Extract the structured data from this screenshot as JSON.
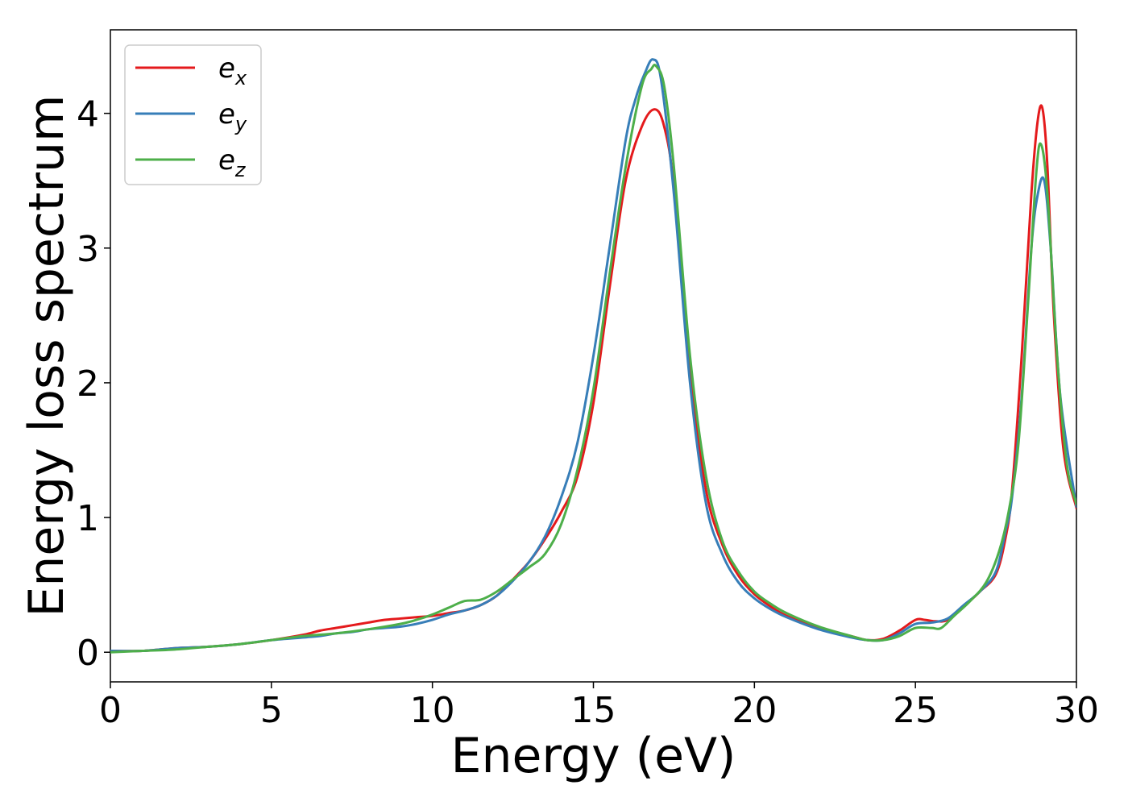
{
  "chart_data": {
    "type": "line",
    "title": "",
    "xlabel": "Energy (eV)",
    "ylabel": "Energy loss spectrum",
    "xlim": [
      0,
      30
    ],
    "ylim": [
      -0.22,
      4.62
    ],
    "xticks": [
      0,
      5,
      10,
      15,
      20,
      25,
      30
    ],
    "xtick_labels": [
      "0",
      "5",
      "10",
      "15",
      "20",
      "25",
      "30"
    ],
    "yticks": [
      0,
      1,
      2,
      3,
      4
    ],
    "ytick_labels": [
      "0",
      "1",
      "2",
      "3",
      "4"
    ],
    "grid": false,
    "legend": "top-left",
    "series": [
      {
        "name": "e",
        "subscript": "x",
        "color": "#e41a1c",
        "x": [
          0,
          1,
          2,
          3,
          4,
          5,
          6,
          6.5,
          7,
          7.5,
          8,
          8.5,
          9,
          9.5,
          10,
          10.5,
          11,
          11.5,
          12,
          12.5,
          13,
          13.5,
          14,
          14.5,
          15,
          15.5,
          16,
          16.5,
          16.9,
          17.2,
          17.5,
          18,
          18.5,
          19,
          19.5,
          20,
          20.5,
          21,
          22,
          23,
          23.5,
          24,
          24.5,
          25,
          25.3,
          25.6,
          26,
          26.5,
          27,
          27.5,
          27.8,
          28,
          28.3,
          28.6,
          28.8,
          28.95,
          29.1,
          29.3,
          29.6,
          30
        ],
        "y": [
          0.01,
          0.01,
          0.03,
          0.04,
          0.06,
          0.09,
          0.13,
          0.16,
          0.18,
          0.2,
          0.22,
          0.24,
          0.25,
          0.26,
          0.27,
          0.29,
          0.31,
          0.35,
          0.42,
          0.54,
          0.67,
          0.84,
          1.04,
          1.3,
          1.85,
          2.7,
          3.5,
          3.9,
          4.03,
          3.9,
          3.45,
          2.1,
          1.2,
          0.8,
          0.57,
          0.43,
          0.34,
          0.27,
          0.18,
          0.12,
          0.09,
          0.1,
          0.16,
          0.24,
          0.24,
          0.23,
          0.24,
          0.34,
          0.45,
          0.58,
          0.85,
          1.2,
          2.2,
          3.4,
          3.95,
          4.03,
          3.6,
          2.5,
          1.5,
          1.07
        ]
      },
      {
        "name": "e",
        "subscript": "y",
        "color": "#377eb8",
        "x": [
          0,
          1,
          2,
          3,
          4,
          5,
          6,
          6.5,
          7,
          7.5,
          8,
          8.5,
          9,
          9.5,
          10,
          10.5,
          11,
          11.5,
          12,
          12.5,
          13,
          13.5,
          14,
          14.5,
          15,
          15.5,
          16,
          16.3,
          16.6,
          16.85,
          17.1,
          17.5,
          18,
          18.5,
          19,
          19.5,
          20,
          20.5,
          21,
          22,
          23,
          23.5,
          24,
          24.5,
          25,
          25.5,
          26,
          26.5,
          27,
          27.5,
          27.8,
          28,
          28.3,
          28.6,
          28.8,
          29,
          29.2,
          29.5,
          30
        ],
        "y": [
          0.01,
          0.01,
          0.03,
          0.04,
          0.06,
          0.09,
          0.11,
          0.12,
          0.14,
          0.15,
          0.17,
          0.18,
          0.19,
          0.21,
          0.24,
          0.28,
          0.31,
          0.35,
          0.42,
          0.53,
          0.67,
          0.86,
          1.15,
          1.55,
          2.2,
          3.0,
          3.8,
          4.1,
          4.3,
          4.4,
          4.25,
          3.4,
          2.0,
          1.1,
          0.73,
          0.52,
          0.4,
          0.32,
          0.26,
          0.17,
          0.11,
          0.09,
          0.09,
          0.14,
          0.21,
          0.22,
          0.25,
          0.35,
          0.45,
          0.6,
          0.9,
          1.15,
          1.9,
          3.0,
          3.4,
          3.5,
          3.0,
          1.9,
          1.08
        ]
      },
      {
        "name": "e",
        "subscript": "z",
        "color": "#4daf4a",
        "x": [
          0,
          1,
          2,
          3,
          4,
          5,
          6,
          7,
          8,
          9,
          9.5,
          10,
          10.5,
          11,
          11.5,
          12,
          12.5,
          13,
          13.5,
          14,
          14.5,
          15,
          15.5,
          16,
          16.5,
          16.8,
          16.95,
          17.2,
          17.5,
          18,
          18.5,
          19,
          19.5,
          20,
          20.5,
          21,
          22,
          23,
          23.5,
          24,
          24.5,
          25,
          25.5,
          25.8,
          26.2,
          26.7,
          27.2,
          27.6,
          27.9,
          28.2,
          28.5,
          28.75,
          28.9,
          29.1,
          29.4,
          29.7,
          30
        ],
        "y": [
          0.0,
          0.01,
          0.02,
          0.04,
          0.06,
          0.09,
          0.12,
          0.14,
          0.17,
          0.21,
          0.24,
          0.28,
          0.33,
          0.38,
          0.39,
          0.45,
          0.54,
          0.63,
          0.73,
          0.95,
          1.35,
          1.95,
          2.8,
          3.6,
          4.2,
          4.33,
          4.35,
          4.2,
          3.6,
          2.2,
          1.3,
          0.83,
          0.6,
          0.45,
          0.36,
          0.29,
          0.19,
          0.12,
          0.09,
          0.09,
          0.12,
          0.18,
          0.18,
          0.18,
          0.27,
          0.38,
          0.52,
          0.75,
          1.05,
          1.55,
          2.6,
          3.55,
          3.77,
          3.4,
          2.2,
          1.4,
          1.1
        ]
      }
    ]
  }
}
